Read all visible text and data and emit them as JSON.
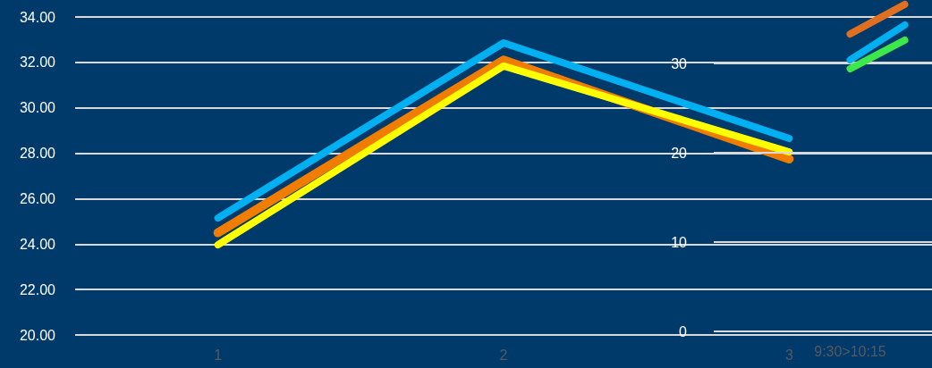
{
  "chart_data": [
    {
      "type": "line",
      "categories": [
        "1",
        "2",
        "3"
      ],
      "ylim": [
        20,
        34
      ],
      "yticks": [
        {
          "value": 20,
          "label": "20.00"
        },
        {
          "value": 22,
          "label": "22.00"
        },
        {
          "value": 24,
          "label": "24.00"
        },
        {
          "value": 26,
          "label": "26.00"
        },
        {
          "value": 28,
          "label": "28.00"
        },
        {
          "value": 30,
          "label": "30.00"
        },
        {
          "value": 32,
          "label": "32.00"
        },
        {
          "value": 34,
          "label": "34.00"
        }
      ],
      "grid": "y",
      "marker": "none",
      "line_style": "solid",
      "series": [
        {
          "color": "#00b0f0",
          "values": [
            25.15,
            32.86,
            28.65
          ]
        },
        {
          "color": "#f07c00",
          "values": [
            24.5,
            32.1,
            27.75
          ]
        },
        {
          "color": "#ffff00",
          "values": [
            23.97,
            31.84,
            28.06
          ]
        }
      ]
    },
    {
      "type": "line",
      "categories": [
        null,
        null,
        "9:30>10:15",
        null
      ],
      "ylim": [
        0,
        37
      ],
      "yticks": [
        0,
        10,
        20,
        30
      ],
      "grid": "y",
      "marker": "none",
      "line_style": "solid",
      "series": [
        {
          "color": "#e07020",
          "values": [
            null,
            null,
            33.3,
            36.6
          ]
        },
        {
          "color": "#00b0f0",
          "values": [
            null,
            null,
            30.4,
            34.3
          ]
        },
        {
          "color": "#3de84a",
          "values": [
            null,
            null,
            29.4,
            32.6
          ]
        }
      ]
    }
  ]
}
